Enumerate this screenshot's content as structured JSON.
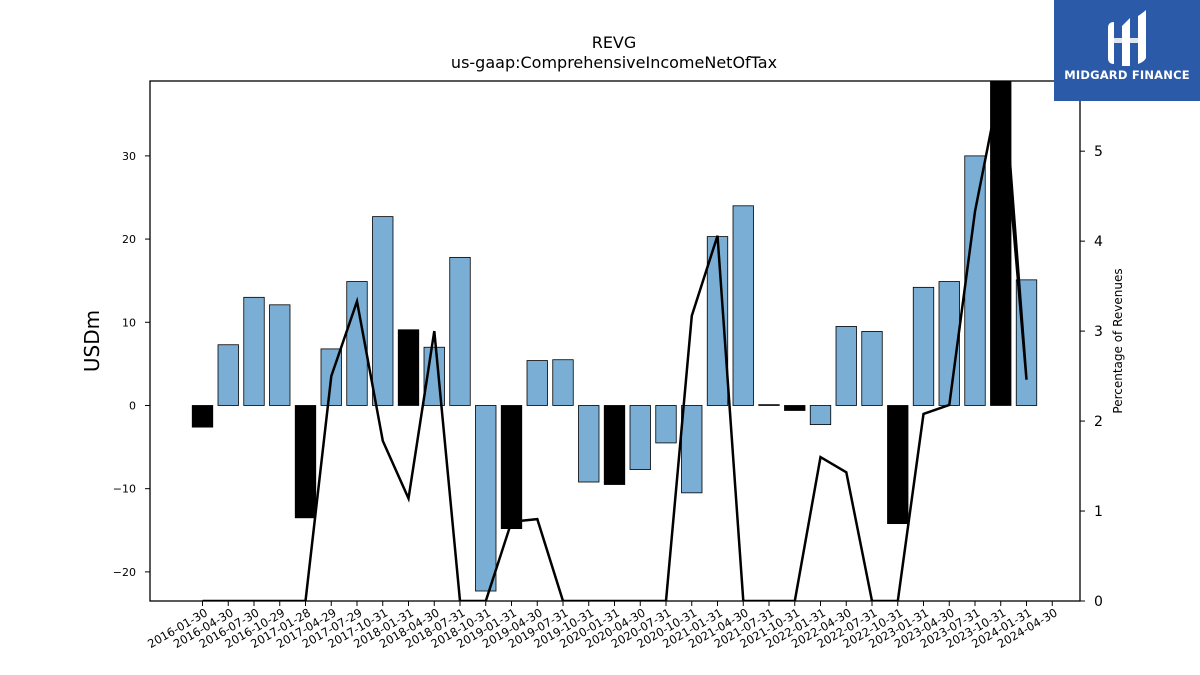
{
  "brand": {
    "name": "MIDGARD FINANCE",
    "icon": "midgard-logo-icon",
    "bg_color": "#2b5aa8"
  },
  "chart_data": {
    "type": "bar",
    "title": "REVG",
    "subtitle": "us-gaap:ComprehensiveIncomeNetOfTax",
    "ylabel": "USDm",
    "y2label": "Percentage of Revenues",
    "ylim": [
      -23.5,
      39
    ],
    "y2lim": [
      0,
      5.78
    ],
    "yticks": [
      -20,
      -10,
      0,
      10,
      20,
      30
    ],
    "y2ticks": [
      0,
      1,
      2,
      3,
      4,
      5
    ],
    "colors": {
      "positive_bar": "#7aaed4",
      "negative_or_q4_bar": "#000000",
      "line": "#000000"
    },
    "categories": [
      "2016-01-30",
      "2016-04-30",
      "2016-07-30",
      "2016-10-29",
      "2017-01-28",
      "2017-04-29",
      "2017-07-29",
      "2017-10-31",
      "2018-01-31",
      "2018-04-30",
      "2018-07-31",
      "2018-10-31",
      "2019-01-31",
      "2019-04-30",
      "2019-07-31",
      "2019-10-31",
      "2020-01-31",
      "2020-04-30",
      "2020-07-31",
      "2020-10-31",
      "2021-01-31",
      "2021-04-30",
      "2021-07-31",
      "2021-10-31",
      "2022-01-31",
      "2022-04-30",
      "2022-07-31",
      "2022-10-31",
      "2023-01-31",
      "2023-04-30",
      "2023-07-31",
      "2023-10-31",
      "2024-01-31",
      "2024-04-30"
    ],
    "series": [
      {
        "type": "bar",
        "axis": "left",
        "values": [
          -2.6,
          7.3,
          13.0,
          12.1,
          -13.5,
          6.8,
          14.9,
          22.7,
          9.1,
          7.0,
          17.8,
          -22.3,
          -14.8,
          5.4,
          5.5,
          -9.2,
          -9.5,
          -7.7,
          -4.5,
          -10.5,
          20.3,
          24.0,
          0.1,
          -0.6,
          -2.3,
          9.5,
          8.9,
          -14.2,
          14.2,
          14.9,
          30.0,
          39.0,
          15.1,
          0
        ],
        "highlight": [
          true,
          false,
          false,
          false,
          true,
          false,
          false,
          false,
          true,
          false,
          false,
          false,
          true,
          false,
          false,
          false,
          true,
          false,
          false,
          false,
          false,
          false,
          false,
          true,
          false,
          false,
          false,
          true,
          false,
          false,
          false,
          true,
          false,
          false
        ]
      },
      {
        "type": "line",
        "axis": "right",
        "values": [
          0,
          0,
          0,
          0,
          0,
          2.5,
          3.33,
          1.78,
          1.14,
          3.0,
          0,
          0,
          0.88,
          0.91,
          0,
          0,
          0,
          0,
          0,
          3.17,
          4.06,
          0,
          0,
          0,
          1.6,
          1.43,
          0,
          0,
          2.08,
          2.18,
          4.33,
          5.78,
          2.46,
          null
        ]
      }
    ]
  }
}
